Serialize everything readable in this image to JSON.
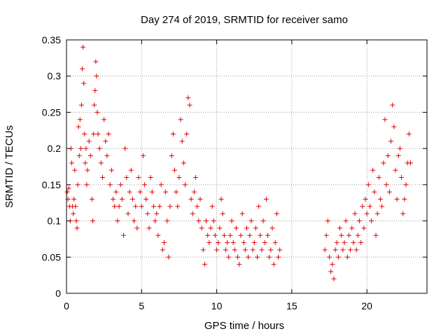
{
  "chart_data": {
    "type": "scatter",
    "title": "Day 274 of 2019, SRMTID for receiver samo",
    "xlabel": "GPS time / hours",
    "ylabel": "SRMTID / TECUs",
    "xlim": [
      0,
      24
    ],
    "ylim": [
      0,
      0.35
    ],
    "xticks": [
      0,
      5,
      10,
      15,
      20
    ],
    "xtick_labels": [
      "0",
      "5",
      "10",
      "15",
      "20"
    ],
    "yticks": [
      0,
      0.05,
      0.1,
      0.15,
      0.2,
      0.25,
      0.3,
      0.35
    ],
    "ytick_labels": [
      "0",
      "0.05",
      "0.1",
      "0.15",
      "0.2",
      "0.25",
      "0.3",
      "0.35"
    ],
    "grid": true,
    "marker": "+",
    "color": "#e00000",
    "series": [
      {
        "name": "SRMTID",
        "points": [
          [
            0.05,
            0.14
          ],
          [
            0.1,
            0.13
          ],
          [
            0.15,
            0.145
          ],
          [
            0.2,
            0.12
          ],
          [
            0.25,
            0.1
          ],
          [
            0.3,
            0.2
          ],
          [
            0.35,
            0.18
          ],
          [
            0.4,
            0.12
          ],
          [
            0.45,
            0.11
          ],
          [
            0.5,
            0.13
          ],
          [
            0.55,
            0.17
          ],
          [
            0.6,
            0.12
          ],
          [
            0.65,
            0.1
          ],
          [
            0.7,
            0.09
          ],
          [
            0.75,
            0.15
          ],
          [
            0.8,
            0.23
          ],
          [
            0.85,
            0.19
          ],
          [
            0.9,
            0.24
          ],
          [
            0.95,
            0.2
          ],
          [
            1.0,
            0.26
          ],
          [
            1.05,
            0.31
          ],
          [
            1.1,
            0.34
          ],
          [
            1.15,
            0.29
          ],
          [
            1.2,
            0.22
          ],
          [
            1.25,
            0.18
          ],
          [
            1.3,
            0.2
          ],
          [
            1.35,
            0.15
          ],
          [
            1.4,
            0.17
          ],
          [
            1.5,
            0.21
          ],
          [
            1.6,
            0.19
          ],
          [
            1.7,
            0.13
          ],
          [
            1.75,
            0.1
          ],
          [
            1.8,
            0.22
          ],
          [
            1.85,
            0.26
          ],
          [
            1.9,
            0.28
          ],
          [
            1.95,
            0.32
          ],
          [
            2.0,
            0.3
          ],
          [
            2.05,
            0.25
          ],
          [
            2.1,
            0.22
          ],
          [
            2.2,
            0.2
          ],
          [
            2.3,
            0.18
          ],
          [
            2.4,
            0.16
          ],
          [
            2.5,
            0.24
          ],
          [
            2.6,
            0.21
          ],
          [
            2.7,
            0.19
          ],
          [
            2.8,
            0.22
          ],
          [
            2.9,
            0.15
          ],
          [
            3.0,
            0.17
          ],
          [
            3.1,
            0.13
          ],
          [
            3.2,
            0.12
          ],
          [
            3.3,
            0.14
          ],
          [
            3.4,
            0.1
          ],
          [
            3.5,
            0.12
          ],
          [
            3.6,
            0.15
          ],
          [
            3.7,
            0.13
          ],
          [
            3.8,
            0.08
          ],
          [
            3.9,
            0.2
          ],
          [
            4.0,
            0.16
          ],
          [
            4.1,
            0.11
          ],
          [
            4.2,
            0.14
          ],
          [
            4.3,
            0.17
          ],
          [
            4.4,
            0.13
          ],
          [
            4.5,
            0.1
          ],
          [
            4.6,
            0.12
          ],
          [
            4.7,
            0.09
          ],
          [
            4.8,
            0.16
          ],
          [
            4.9,
            0.14
          ],
          [
            5.0,
            0.12
          ],
          [
            5.1,
            0.19
          ],
          [
            5.2,
            0.15
          ],
          [
            5.3,
            0.13
          ],
          [
            5.4,
            0.11
          ],
          [
            5.5,
            0.09
          ],
          [
            5.6,
            0.16
          ],
          [
            5.7,
            0.14
          ],
          [
            5.8,
            0.12
          ],
          [
            5.9,
            0.1
          ],
          [
            6.0,
            0.11
          ],
          [
            6.1,
            0.08
          ],
          [
            6.2,
            0.12
          ],
          [
            6.3,
            0.15
          ],
          [
            6.4,
            0.06
          ],
          [
            6.5,
            0.07
          ],
          [
            6.6,
            0.14
          ],
          [
            6.7,
            0.1
          ],
          [
            6.8,
            0.05
          ],
          [
            6.9,
            0.12
          ],
          [
            7.0,
            0.19
          ],
          [
            7.1,
            0.22
          ],
          [
            7.2,
            0.17
          ],
          [
            7.3,
            0.14
          ],
          [
            7.4,
            0.12
          ],
          [
            7.5,
            0.16
          ],
          [
            7.6,
            0.24
          ],
          [
            7.7,
            0.21
          ],
          [
            7.8,
            0.18
          ],
          [
            7.9,
            0.15
          ],
          [
            8.0,
            0.22
          ],
          [
            8.1,
            0.27
          ],
          [
            8.2,
            0.26
          ],
          [
            8.3,
            0.13
          ],
          [
            8.4,
            0.11
          ],
          [
            8.5,
            0.14
          ],
          [
            8.6,
            0.16
          ],
          [
            8.7,
            0.12
          ],
          [
            8.8,
            0.1
          ],
          [
            8.9,
            0.13
          ],
          [
            9.0,
            0.09
          ],
          [
            9.1,
            0.06
          ],
          [
            9.2,
            0.04
          ],
          [
            9.3,
            0.1
          ],
          [
            9.4,
            0.08
          ],
          [
            9.5,
            0.07
          ],
          [
            9.6,
            0.09
          ],
          [
            9.7,
            0.12
          ],
          [
            9.8,
            0.1
          ],
          [
            9.9,
            0.08
          ],
          [
            10.0,
            0.06
          ],
          [
            10.1,
            0.07
          ],
          [
            10.2,
            0.09
          ],
          [
            10.3,
            0.13
          ],
          [
            10.4,
            0.11
          ],
          [
            10.5,
            0.08
          ],
          [
            10.6,
            0.06
          ],
          [
            10.7,
            0.07
          ],
          [
            10.8,
            0.05
          ],
          [
            10.9,
            0.08
          ],
          [
            11.0,
            0.1
          ],
          [
            11.1,
            0.07
          ],
          [
            11.2,
            0.06
          ],
          [
            11.3,
            0.09
          ],
          [
            11.4,
            0.05
          ],
          [
            11.5,
            0.04
          ],
          [
            11.6,
            0.08
          ],
          [
            11.7,
            0.11
          ],
          [
            11.8,
            0.07
          ],
          [
            11.9,
            0.06
          ],
          [
            12.0,
            0.09
          ],
          [
            12.1,
            0.05
          ],
          [
            12.2,
            0.08
          ],
          [
            12.3,
            0.1
          ],
          [
            12.4,
            0.06
          ],
          [
            12.5,
            0.07
          ],
          [
            12.6,
            0.09
          ],
          [
            12.7,
            0.05
          ],
          [
            12.8,
            0.12
          ],
          [
            12.9,
            0.08
          ],
          [
            13.0,
            0.06
          ],
          [
            13.1,
            0.1
          ],
          [
            13.2,
            0.07
          ],
          [
            13.3,
            0.13
          ],
          [
            13.4,
            0.08
          ],
          [
            13.5,
            0.05
          ],
          [
            13.6,
            0.06
          ],
          [
            13.7,
            0.09
          ],
          [
            13.8,
            0.04
          ],
          [
            13.9,
            0.07
          ],
          [
            14.0,
            0.11
          ],
          [
            14.1,
            0.05
          ],
          [
            14.2,
            0.06
          ],
          [
            17.2,
            0.06
          ],
          [
            17.3,
            0.08
          ],
          [
            17.4,
            0.1
          ],
          [
            17.5,
            0.05
          ],
          [
            17.6,
            0.03
          ],
          [
            17.7,
            0.04
          ],
          [
            17.8,
            0.02
          ],
          [
            17.9,
            0.06
          ],
          [
            18.0,
            0.07
          ],
          [
            18.1,
            0.05
          ],
          [
            18.2,
            0.09
          ],
          [
            18.3,
            0.08
          ],
          [
            18.4,
            0.06
          ],
          [
            18.5,
            0.07
          ],
          [
            18.6,
            0.1
          ],
          [
            18.7,
            0.05
          ],
          [
            18.8,
            0.08
          ],
          [
            18.9,
            0.06
          ],
          [
            19.0,
            0.09
          ],
          [
            19.1,
            0.07
          ],
          [
            19.2,
            0.11
          ],
          [
            19.3,
            0.06
          ],
          [
            19.4,
            0.08
          ],
          [
            19.5,
            0.1
          ],
          [
            19.6,
            0.07
          ],
          [
            19.7,
            0.12
          ],
          [
            19.8,
            0.09
          ],
          [
            19.9,
            0.13
          ],
          [
            20.0,
            0.11
          ],
          [
            20.1,
            0.15
          ],
          [
            20.2,
            0.12
          ],
          [
            20.3,
            0.1
          ],
          [
            20.4,
            0.17
          ],
          [
            20.5,
            0.14
          ],
          [
            20.6,
            0.08
          ],
          [
            20.7,
            0.11
          ],
          [
            20.8,
            0.16
          ],
          [
            20.9,
            0.13
          ],
          [
            21.0,
            0.12
          ],
          [
            21.1,
            0.18
          ],
          [
            21.2,
            0.24
          ],
          [
            21.3,
            0.15
          ],
          [
            21.4,
            0.19
          ],
          [
            21.5,
            0.14
          ],
          [
            21.6,
            0.21
          ],
          [
            21.7,
            0.26
          ],
          [
            21.8,
            0.23
          ],
          [
            21.9,
            0.17
          ],
          [
            22.0,
            0.13
          ],
          [
            22.1,
            0.19
          ],
          [
            22.2,
            0.2
          ],
          [
            22.3,
            0.16
          ],
          [
            22.4,
            0.11
          ],
          [
            22.5,
            0.13
          ],
          [
            22.6,
            0.15
          ],
          [
            22.7,
            0.18
          ],
          [
            22.8,
            0.22
          ],
          [
            22.9,
            0.18
          ]
        ]
      }
    ]
  }
}
